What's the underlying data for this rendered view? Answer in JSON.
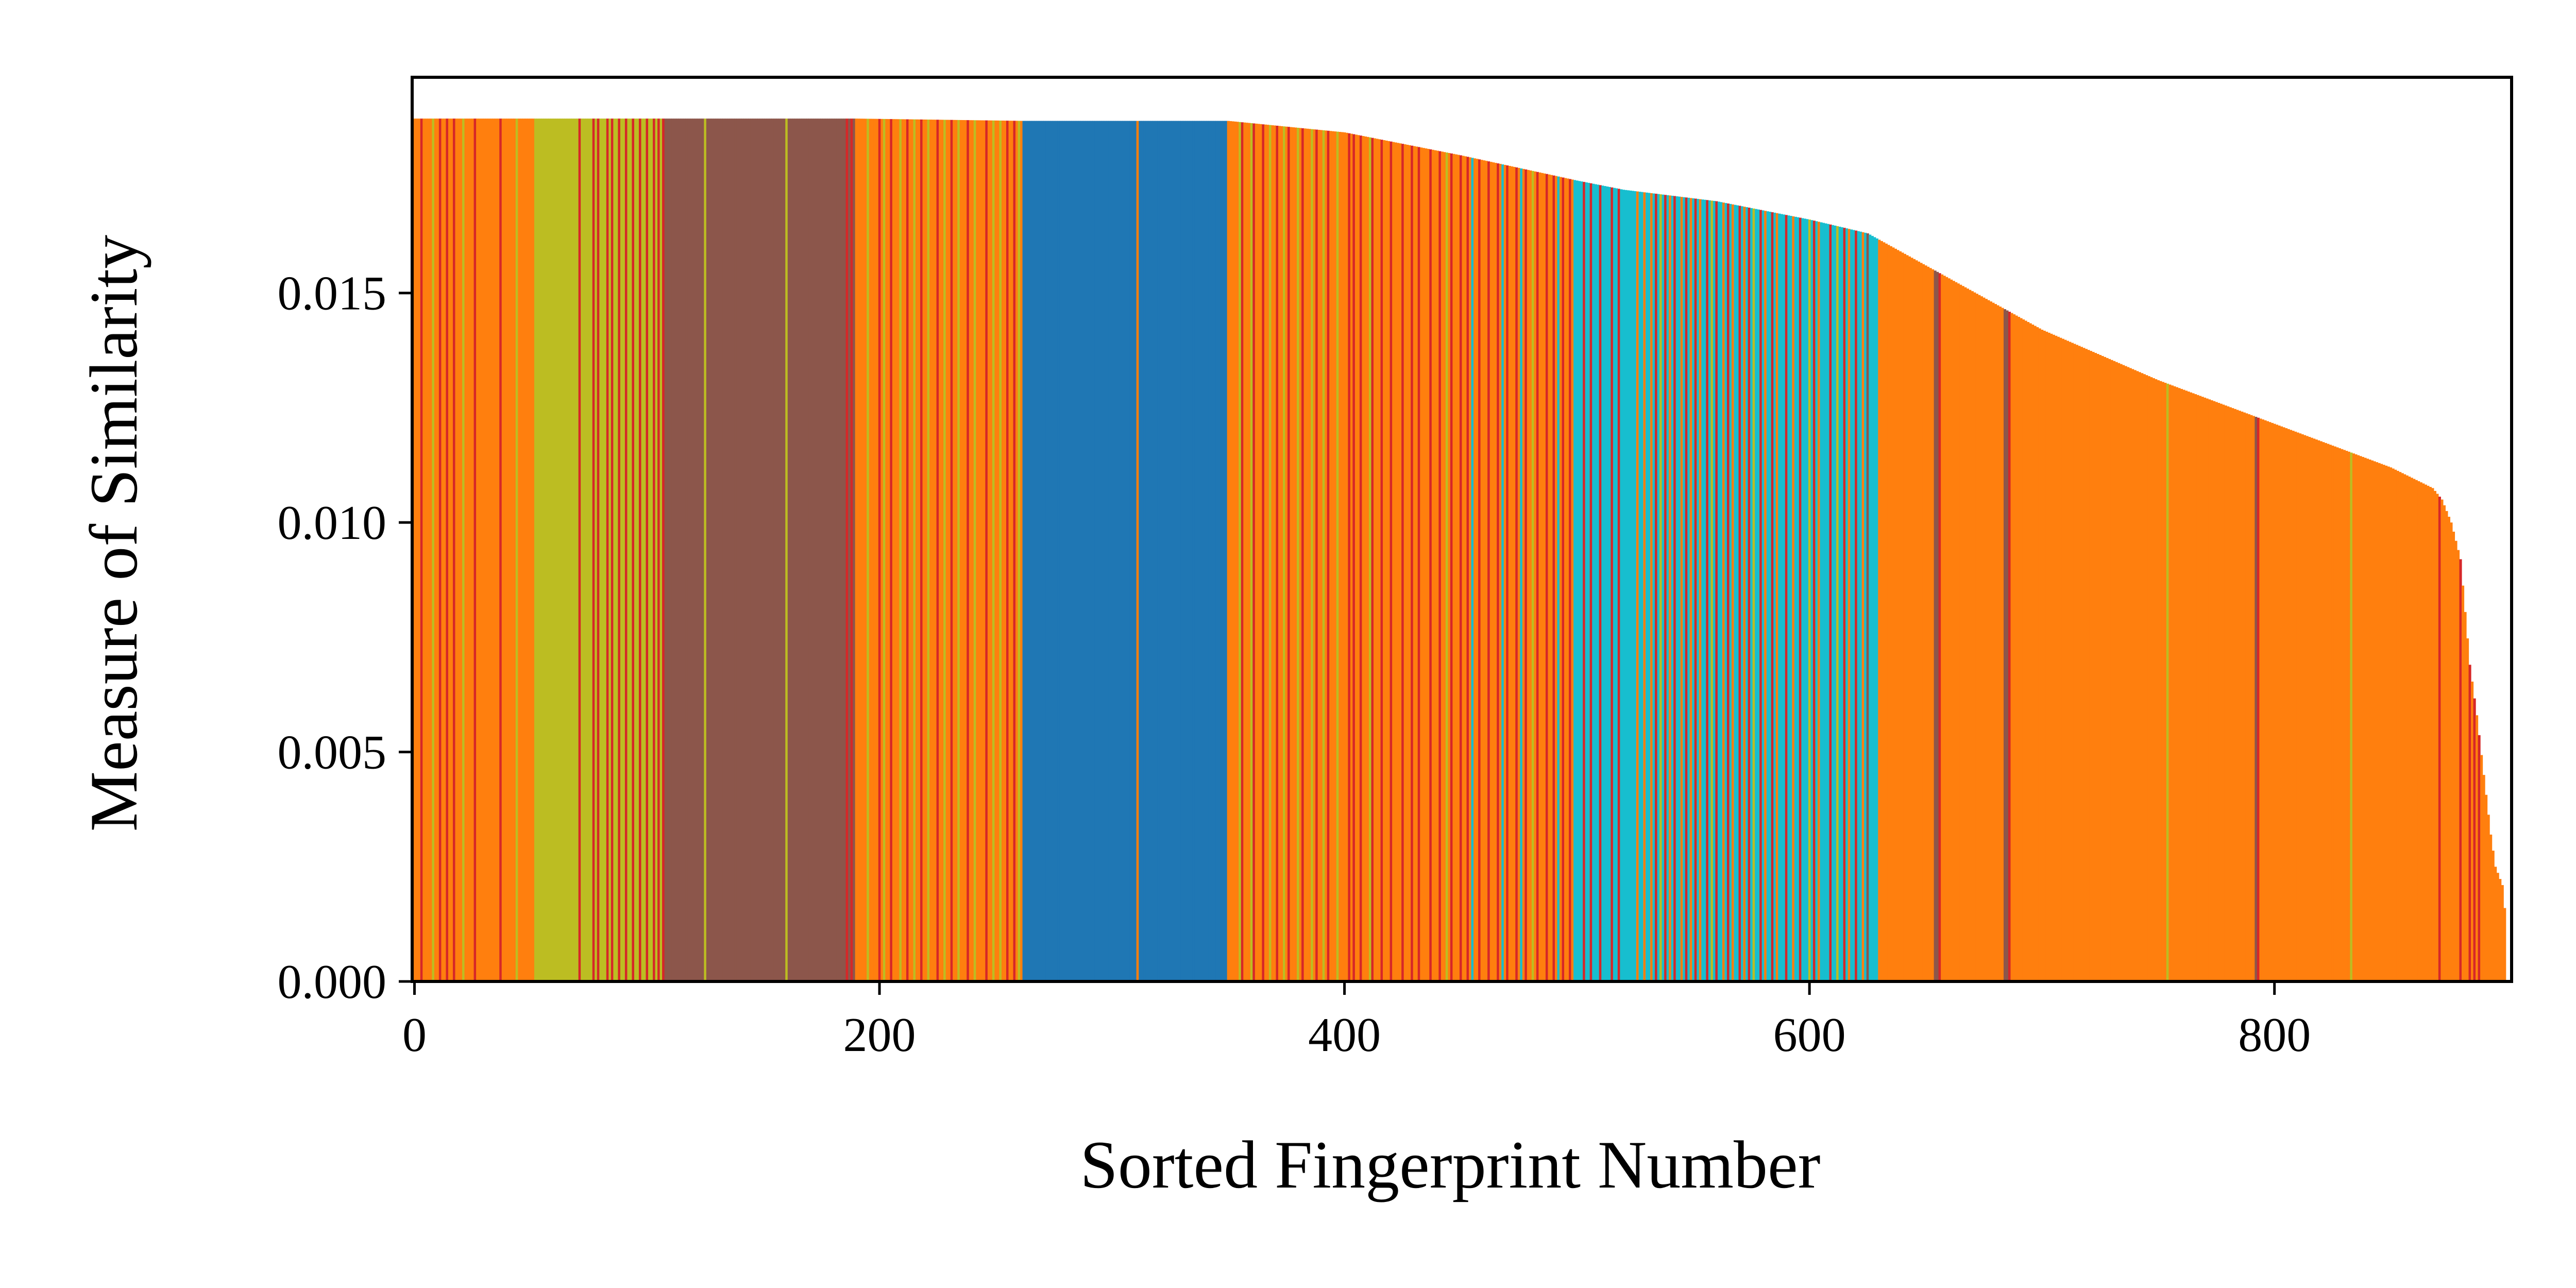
{
  "chart_data": {
    "type": "bar",
    "xlabel": "Sorted Fingerprint Number",
    "ylabel": "Measure of Similarity",
    "xlim": [
      -1,
      902
    ],
    "ylim": [
      0,
      0.0197
    ],
    "x_ticks": [
      0,
      200,
      400,
      600,
      800
    ],
    "x_tick_labels": [
      "0",
      "200",
      "400",
      "600",
      "800"
    ],
    "y_ticks": [
      0,
      0.005,
      0.01,
      0.015
    ],
    "y_tick_labels": [
      "0.000",
      "0.005",
      "0.010",
      "0.015"
    ],
    "grid": false,
    "legend": "none",
    "n_bars": 900,
    "palette": {
      "blue": "#1f77b4",
      "orange": "#ff7f0e",
      "red": "#d62728",
      "brown": "#8c564b",
      "olive": "#bcbd22",
      "cyan": "#17becf"
    },
    "value_profile": [
      [
        0,
        0.0188
      ],
      [
        190,
        0.0188
      ],
      [
        262,
        0.01875
      ],
      [
        350,
        0.01875
      ],
      [
        400,
        0.0185
      ],
      [
        450,
        0.018
      ],
      [
        500,
        0.01745
      ],
      [
        520,
        0.01725
      ],
      [
        560,
        0.017
      ],
      [
        600,
        0.0166
      ],
      [
        625,
        0.0163
      ],
      [
        650,
        0.0156
      ],
      [
        700,
        0.0142
      ],
      [
        750,
        0.0131
      ],
      [
        800,
        0.01215
      ],
      [
        850,
        0.0112
      ],
      [
        868,
        0.01075
      ],
      [
        872,
        0.0105
      ],
      [
        876,
        0.01
      ],
      [
        880,
        0.0092
      ],
      [
        884,
        0.0069
      ],
      [
        887,
        0.0058
      ],
      [
        890,
        0.0045
      ],
      [
        893,
        0.0032
      ],
      [
        895,
        0.0025
      ],
      [
        898,
        0.0021
      ],
      [
        899,
        0.0016
      ],
      [
        900,
        0.0016
      ]
    ],
    "color_segments": [
      {
        "start": 0,
        "end": 52,
        "color": "orange"
      },
      {
        "start": 52,
        "end": 75,
        "color": "olive"
      },
      {
        "start": 75,
        "end": 108,
        "color": "olive"
      },
      {
        "start": 108,
        "end": 190,
        "color": "brown"
      },
      {
        "start": 190,
        "end": 262,
        "color": "orange"
      },
      {
        "start": 262,
        "end": 350,
        "color": "blue"
      },
      {
        "start": 350,
        "end": 500,
        "color": "orange"
      },
      {
        "start": 500,
        "end": 630,
        "color": "cyan"
      },
      {
        "start": 630,
        "end": 900,
        "color": "orange"
      }
    ],
    "stripes": [
      {
        "color": "red",
        "x": [
          3,
          11,
          14,
          17,
          26,
          37,
          71,
          77,
          79,
          83,
          85,
          88,
          91,
          94,
          97,
          100,
          103,
          105,
          107,
          186,
          188,
          200,
          205,
          212,
          218,
          225,
          231,
          238,
          246,
          255,
          258,
          356,
          361,
          365,
          371,
          376,
          382,
          388,
          393,
          402,
          404,
          407,
          412,
          416,
          420,
          425,
          429,
          432,
          437,
          441,
          446,
          450,
          453,
          458,
          462,
          466,
          470,
          474,
          478,
          483,
          487,
          490,
          494,
          497,
          503,
          506,
          510,
          515,
          518,
          534,
          538,
          542,
          547,
          551,
          556,
          560,
          565,
          570,
          574,
          579,
          584,
          590,
          596,
          602,
          609,
          615,
          620,
          656,
          686,
          793,
          871,
          880,
          884,
          886,
          888
        ]
      },
      {
        "color": "olive",
        "x": [
          8,
          21,
          44,
          125,
          160,
          195,
          202,
          209,
          215,
          221,
          228,
          234,
          241,
          249,
          252,
          260,
          355,
          360,
          368,
          374,
          380,
          386,
          391,
          397,
          411,
          444,
          481,
          536,
          558,
          576,
          600,
          612,
          754,
          833
        ]
      },
      {
        "color": "brown",
        "x": [
          625,
          654,
          655,
          684,
          685,
          792
        ]
      },
      {
        "color": "cyan",
        "x": [
          455,
          468,
          476,
          492,
          499
        ]
      },
      {
        "color": "orange",
        "x": [
          311,
          526,
          529,
          532,
          540,
          545,
          549,
          553,
          563,
          567,
          572,
          581,
          586,
          593,
          604,
          617,
          623
        ]
      }
    ]
  }
}
